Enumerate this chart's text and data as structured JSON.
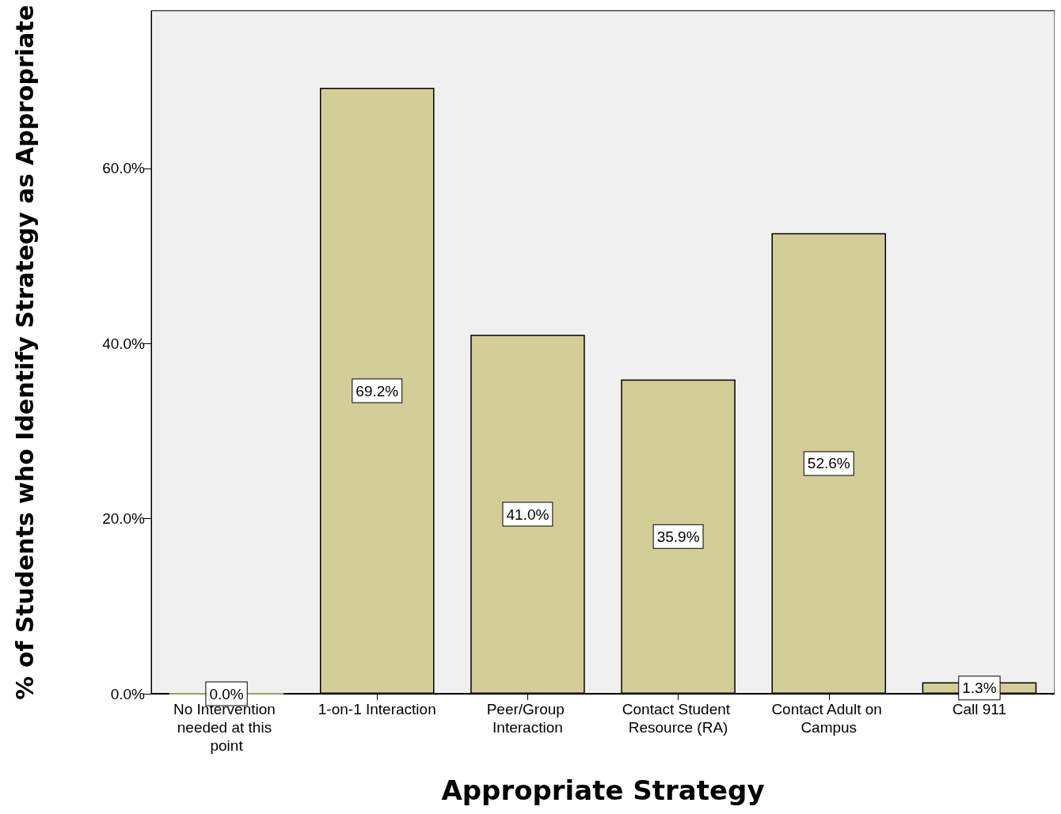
{
  "chart_data": {
    "type": "bar",
    "xlabel": "Appropriate Strategy",
    "ylabel": "% of Students who Identify Strategy as Appropriate",
    "categories": [
      "No Intervention needed at this point",
      "1-on-1 Interaction",
      "Peer/Group Interaction",
      "Contact Student Resource (RA)",
      "Contact Adult on Campus",
      "Call 911"
    ],
    "values": [
      0.0,
      69.2,
      41.0,
      35.9,
      52.6,
      1.3
    ],
    "value_labels": [
      "0.0%",
      "69.2%",
      "41.0%",
      "35.9%",
      "52.6%",
      "1.3%"
    ],
    "color": "#d3ce97",
    "ylim": [
      0,
      78
    ],
    "yticks": [
      {
        "value": 0,
        "label": "0.0%"
      },
      {
        "value": 20,
        "label": "20.0%"
      },
      {
        "value": 40,
        "label": "40.0%"
      },
      {
        "value": 60,
        "label": "60.0%"
      }
    ],
    "grid": false
  }
}
